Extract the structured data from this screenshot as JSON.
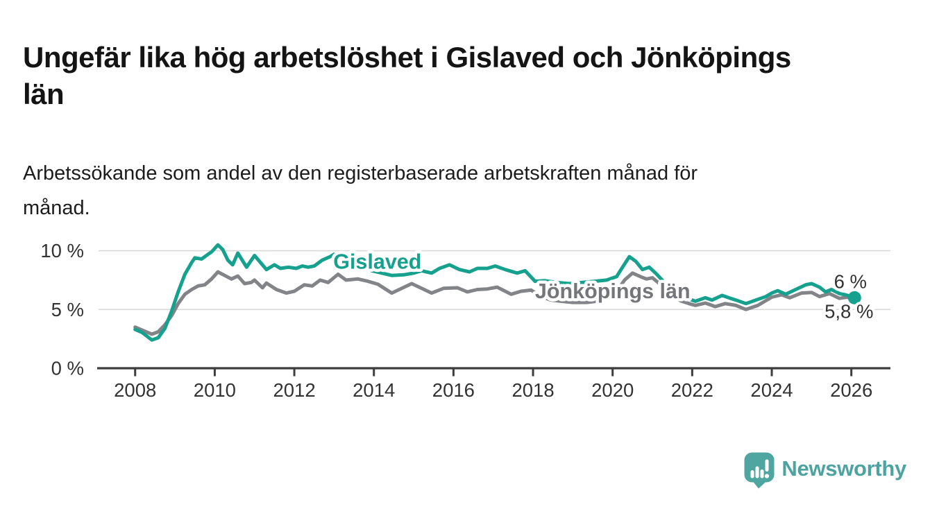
{
  "page": {
    "title": "Ungefär lika hög arbetslöshet i Gislaved och Jönköpings län",
    "title_lines": [
      "Ungefär lika hög arbetslöshet i Gislaved och Jönköpings",
      "län"
    ],
    "subtitle": "Arbetssökande som andel av den registerbaserade arbetskraften månad för månad.",
    "subtitle_lines": [
      "Arbetssökande som andel av den registerbaserade arbetskraften månad för",
      "månad."
    ]
  },
  "branding": {
    "logo_text": "Newsworthy",
    "logo_icon": "newsworthy-speech-bubble-bar-chart-icon",
    "logo_color": "#4CA3A0",
    "logo_mark_color": "#4FA6A1"
  },
  "chart_data": {
    "type": "line",
    "title": "Ungefär lika hög arbetslöshet i Gislaved och Jönköpings län",
    "subtitle": "Arbetssökande som andel av den registerbaserade arbetskraften månad för månad.",
    "x_unit": "år (månadsdata)",
    "y_unit": "%",
    "xlim": [
      2007.1,
      2027.0
    ],
    "ylim": [
      0,
      11.3
    ],
    "x_ticks": [
      2008,
      2010,
      2012,
      2014,
      2016,
      2018,
      2020,
      2022,
      2024,
      2026
    ],
    "x_tick_labels": [
      "2008",
      "2010",
      "2012",
      "2014",
      "2016",
      "2018",
      "2020",
      "2022",
      "2024",
      "2026"
    ],
    "y_ticks": [
      0,
      5,
      10
    ],
    "y_tick_labels": [
      "0 %",
      "5 %",
      "10 %"
    ],
    "y_gridlines": [
      5,
      10
    ],
    "grid": "horizontal",
    "legend_position": "inline-labels-on-lines",
    "axis_color": "#3d3d3d",
    "grid_color": "#d8d8d8",
    "tick_label_color": "#333333",
    "end_label_color": "#333333",
    "series": [
      {
        "name": "Jönköpings län",
        "color": "#828487",
        "label_color": "#75767A",
        "label_pos": {
          "x": 2018.05,
          "y": 6.55
        },
        "end_label": "5,8 %",
        "end_value": 5.8,
        "end_dot": false,
        "points": [
          [
            2008.0,
            3.5
          ],
          [
            2008.17,
            3.25
          ],
          [
            2008.42,
            2.9
          ],
          [
            2008.58,
            3.1
          ],
          [
            2008.75,
            3.7
          ],
          [
            2008.92,
            4.5
          ],
          [
            2009.08,
            5.5
          ],
          [
            2009.25,
            6.3
          ],
          [
            2009.42,
            6.7
          ],
          [
            2009.58,
            7.0
          ],
          [
            2009.75,
            7.1
          ],
          [
            2009.92,
            7.6
          ],
          [
            2010.08,
            8.2
          ],
          [
            2010.25,
            7.9
          ],
          [
            2010.42,
            7.6
          ],
          [
            2010.58,
            7.85
          ],
          [
            2010.75,
            7.2
          ],
          [
            2010.92,
            7.3
          ],
          [
            2011.0,
            7.5
          ],
          [
            2011.2,
            6.85
          ],
          [
            2011.3,
            7.25
          ],
          [
            2011.55,
            6.7
          ],
          [
            2011.8,
            6.4
          ],
          [
            2012.0,
            6.55
          ],
          [
            2012.25,
            7.1
          ],
          [
            2012.45,
            7.0
          ],
          [
            2012.65,
            7.5
          ],
          [
            2012.85,
            7.3
          ],
          [
            2013.1,
            8.0
          ],
          [
            2013.3,
            7.5
          ],
          [
            2013.6,
            7.6
          ],
          [
            2013.85,
            7.4
          ],
          [
            2014.1,
            7.15
          ],
          [
            2014.45,
            6.4
          ],
          [
            2014.7,
            6.8
          ],
          [
            2014.95,
            7.2
          ],
          [
            2015.2,
            6.8
          ],
          [
            2015.45,
            6.4
          ],
          [
            2015.75,
            6.8
          ],
          [
            2016.1,
            6.85
          ],
          [
            2016.35,
            6.5
          ],
          [
            2016.6,
            6.7
          ],
          [
            2016.85,
            6.75
          ],
          [
            2017.1,
            6.9
          ],
          [
            2017.45,
            6.3
          ],
          [
            2017.7,
            6.55
          ],
          [
            2017.95,
            6.65
          ],
          [
            2018.2,
            6.1
          ],
          [
            2018.45,
            5.8
          ],
          [
            2018.7,
            5.7
          ],
          [
            2019.0,
            5.6
          ],
          [
            2019.35,
            5.6
          ],
          [
            2019.7,
            5.75
          ],
          [
            2019.95,
            6.0
          ],
          [
            2020.1,
            6.5
          ],
          [
            2020.3,
            7.5
          ],
          [
            2020.5,
            8.1
          ],
          [
            2020.7,
            7.8
          ],
          [
            2020.85,
            7.6
          ],
          [
            2021.0,
            7.7
          ],
          [
            2021.25,
            7.0
          ],
          [
            2021.5,
            6.2
          ],
          [
            2021.7,
            5.75
          ],
          [
            2021.92,
            5.5
          ],
          [
            2022.08,
            5.35
          ],
          [
            2022.33,
            5.55
          ],
          [
            2022.58,
            5.25
          ],
          [
            2022.83,
            5.5
          ],
          [
            2023.1,
            5.35
          ],
          [
            2023.35,
            5.0
          ],
          [
            2023.65,
            5.35
          ],
          [
            2024.0,
            6.05
          ],
          [
            2024.25,
            6.25
          ],
          [
            2024.45,
            6.0
          ],
          [
            2024.75,
            6.4
          ],
          [
            2025.0,
            6.45
          ],
          [
            2025.2,
            6.1
          ],
          [
            2025.45,
            6.35
          ],
          [
            2025.7,
            5.95
          ],
          [
            2025.9,
            6.05
          ],
          [
            2026.08,
            5.8
          ]
        ]
      },
      {
        "name": "Gislaved",
        "color": "#16A18E",
        "label_color": "#16A18E",
        "label_pos": {
          "x": 2012.98,
          "y": 9.05
        },
        "end_label": "6 %",
        "end_value": 6.0,
        "end_dot": true,
        "points": [
          [
            2008.0,
            3.3
          ],
          [
            2008.17,
            3.05
          ],
          [
            2008.42,
            2.4
          ],
          [
            2008.58,
            2.6
          ],
          [
            2008.75,
            3.4
          ],
          [
            2008.92,
            4.9
          ],
          [
            2009.08,
            6.5
          ],
          [
            2009.25,
            8.0
          ],
          [
            2009.42,
            9.0
          ],
          [
            2009.5,
            9.4
          ],
          [
            2009.67,
            9.3
          ],
          [
            2009.83,
            9.7
          ],
          [
            2009.92,
            9.9
          ],
          [
            2010.08,
            10.5
          ],
          [
            2010.2,
            10.1
          ],
          [
            2010.33,
            9.2
          ],
          [
            2010.45,
            8.8
          ],
          [
            2010.58,
            9.8
          ],
          [
            2010.8,
            8.6
          ],
          [
            2011.0,
            9.6
          ],
          [
            2011.3,
            8.4
          ],
          [
            2011.5,
            8.8
          ],
          [
            2011.65,
            8.5
          ],
          [
            2011.85,
            8.6
          ],
          [
            2012.05,
            8.5
          ],
          [
            2012.2,
            8.7
          ],
          [
            2012.35,
            8.6
          ],
          [
            2012.5,
            8.7
          ],
          [
            2012.7,
            9.2
          ],
          [
            2012.9,
            9.5
          ],
          [
            2013.0,
            9.7
          ],
          [
            2013.2,
            9.4
          ],
          [
            2013.45,
            9.0
          ],
          [
            2013.7,
            8.6
          ],
          [
            2013.95,
            8.3
          ],
          [
            2014.2,
            8.1
          ],
          [
            2014.45,
            7.9
          ],
          [
            2014.75,
            7.95
          ],
          [
            2015.0,
            8.1
          ],
          [
            2015.2,
            8.3
          ],
          [
            2015.45,
            8.1
          ],
          [
            2015.65,
            8.5
          ],
          [
            2015.9,
            8.8
          ],
          [
            2016.15,
            8.4
          ],
          [
            2016.4,
            8.2
          ],
          [
            2016.6,
            8.5
          ],
          [
            2016.85,
            8.5
          ],
          [
            2017.05,
            8.7
          ],
          [
            2017.3,
            8.4
          ],
          [
            2017.6,
            8.1
          ],
          [
            2017.8,
            8.3
          ],
          [
            2018.05,
            7.4
          ],
          [
            2018.3,
            7.45
          ],
          [
            2018.6,
            7.3
          ],
          [
            2018.9,
            7.2
          ],
          [
            2019.25,
            7.3
          ],
          [
            2019.55,
            7.4
          ],
          [
            2019.85,
            7.5
          ],
          [
            2020.1,
            7.8
          ],
          [
            2020.25,
            8.6
          ],
          [
            2020.42,
            9.5
          ],
          [
            2020.58,
            9.1
          ],
          [
            2020.75,
            8.4
          ],
          [
            2020.92,
            8.6
          ],
          [
            2021.08,
            8.1
          ],
          [
            2021.33,
            7.2
          ],
          [
            2021.58,
            6.3
          ],
          [
            2021.75,
            6.0
          ],
          [
            2021.92,
            5.9
          ],
          [
            2022.08,
            5.7
          ],
          [
            2022.33,
            6.0
          ],
          [
            2022.5,
            5.8
          ],
          [
            2022.75,
            6.2
          ],
          [
            2022.92,
            6.0
          ],
          [
            2023.1,
            5.8
          ],
          [
            2023.35,
            5.5
          ],
          [
            2023.6,
            5.8
          ],
          [
            2023.85,
            6.1
          ],
          [
            2024.0,
            6.4
          ],
          [
            2024.15,
            6.6
          ],
          [
            2024.35,
            6.3
          ],
          [
            2024.6,
            6.7
          ],
          [
            2024.85,
            7.1
          ],
          [
            2025.0,
            7.2
          ],
          [
            2025.2,
            6.9
          ],
          [
            2025.35,
            6.5
          ],
          [
            2025.5,
            6.7
          ],
          [
            2025.7,
            6.35
          ],
          [
            2025.85,
            6.25
          ],
          [
            2026.0,
            6.1
          ],
          [
            2026.08,
            6.0
          ]
        ]
      }
    ]
  }
}
